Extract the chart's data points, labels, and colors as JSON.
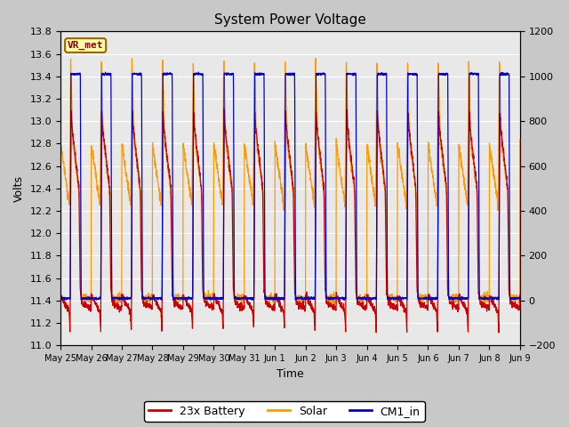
{
  "title": "System Power Voltage",
  "xlabel": "Time",
  "ylabel_left": "Volts",
  "ylim_left": [
    11.0,
    13.8
  ],
  "ylim_right": [
    -200,
    1200
  ],
  "annotation": "VR_met",
  "legend": [
    "23x Battery",
    "Solar",
    "CM1_in"
  ],
  "colors": [
    "#cc0000",
    "#ff9900",
    "#0000cc"
  ],
  "xtick_labels": [
    "May 25",
    "May 26",
    "May 27",
    "May 28",
    "May 29",
    "May 30",
    "May 31",
    "Jun 1",
    "Jun 2",
    "Jun 3",
    "Jun 4",
    "Jun 5",
    "Jun 6",
    "Jun 7",
    "Jun 8",
    "Jun 9"
  ],
  "left_yticks": [
    11.0,
    11.2,
    11.4,
    11.6,
    11.8,
    12.0,
    12.2,
    12.4,
    12.6,
    12.8,
    13.0,
    13.2,
    13.4,
    13.6,
    13.8
  ],
  "right_yticks": [
    -200,
    0,
    200,
    400,
    600,
    800,
    1000,
    1200
  ],
  "fig_bg": "#c8c8c8",
  "plot_bg": "#e8e8e8",
  "grid_color": "#ffffff",
  "n_days": 15,
  "pts_per_day": 200
}
